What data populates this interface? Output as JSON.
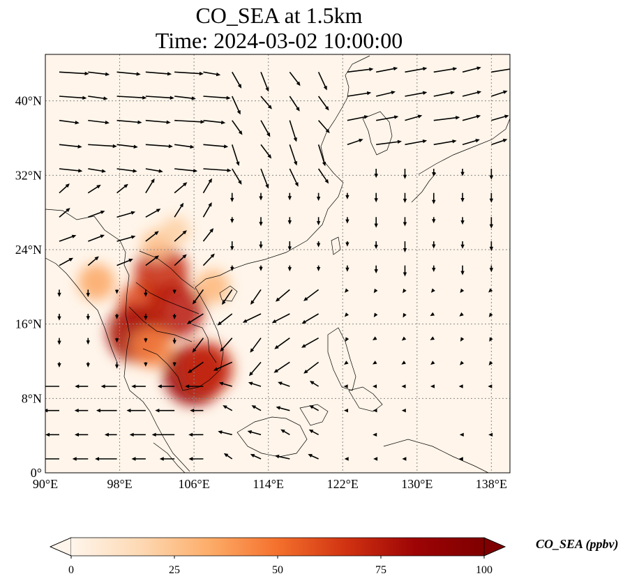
{
  "title": {
    "line1": "CO_SEA at 1.5km",
    "line2": "Time: 2024-03-02 10:00:00"
  },
  "map": {
    "lon_range": [
      90,
      140
    ],
    "lat_range": [
      0,
      45
    ],
    "lon_ticks": [
      {
        "value": 90,
        "label": "90°E"
      },
      {
        "value": 98,
        "label": "98°E"
      },
      {
        "value": 106,
        "label": "106°E"
      },
      {
        "value": 114,
        "label": "114°E"
      },
      {
        "value": 122,
        "label": "122°E"
      },
      {
        "value": 130,
        "label": "130°E"
      },
      {
        "value": 138,
        "label": "138°E"
      }
    ],
    "lat_ticks": [
      {
        "value": 0,
        "label": "0°"
      },
      {
        "value": 8,
        "label": "8°N"
      },
      {
        "value": 16,
        "label": "16°N"
      },
      {
        "value": 24,
        "label": "24°N"
      },
      {
        "value": 32,
        "label": "32°N"
      },
      {
        "value": 40,
        "label": "40°N"
      }
    ],
    "gridlines": true,
    "background_color": "#fff5ea",
    "hotspots": [
      {
        "lon": 100.5,
        "lat": 18.0,
        "value": 60
      },
      {
        "lon": 99.8,
        "lat": 15.0,
        "value": 80
      },
      {
        "lon": 102.5,
        "lat": 21.5,
        "value": 70
      },
      {
        "lon": 104.0,
        "lat": 17.5,
        "value": 75
      },
      {
        "lon": 106.0,
        "lat": 10.5,
        "value": 85
      },
      {
        "lon": 107.3,
        "lat": 11.2,
        "value": 70
      },
      {
        "lon": 101.5,
        "lat": 13.5,
        "value": 45
      },
      {
        "lon": 95.5,
        "lat": 20.5,
        "value": 35
      },
      {
        "lon": 102.0,
        "lat": 24.5,
        "value": 25
      },
      {
        "lon": 104.0,
        "lat": 26.0,
        "value": 20
      },
      {
        "lon": 108.0,
        "lat": 20.0,
        "value": 30
      }
    ],
    "wind_regions": [
      {
        "lon": [
          90,
          110
        ],
        "lat": [
          32,
          45
        ],
        "u": 8,
        "v": -0.8
      },
      {
        "lon": [
          110,
          122
        ],
        "lat": [
          32,
          45
        ],
        "u": 3,
        "v": -6
      },
      {
        "lon": [
          122,
          140
        ],
        "lat": [
          34,
          45
        ],
        "u": 7,
        "v": 1.5
      },
      {
        "lon": [
          90,
          100
        ],
        "lat": [
          22,
          32
        ],
        "u": 5,
        "v": 2.5
      },
      {
        "lon": [
          100,
          110
        ],
        "lat": [
          22,
          32
        ],
        "u": 4,
        "v": 4
      },
      {
        "lon": [
          110,
          124
        ],
        "lat": [
          22,
          32
        ],
        "u": 0,
        "v": -2.5
      },
      {
        "lon": [
          124,
          140
        ],
        "lat": [
          22,
          34
        ],
        "u": 0,
        "v": -3
      },
      {
        "lon": [
          90,
          106
        ],
        "lat": [
          10,
          22
        ],
        "u": 0,
        "v": -2
      },
      {
        "lon": [
          106,
          120
        ],
        "lat": [
          10,
          22
        ],
        "u": -5,
        "v": -4
      },
      {
        "lon": [
          120,
          140
        ],
        "lat": [
          10,
          22
        ],
        "u": -1,
        "v": -1
      },
      {
        "lon": [
          90,
          108
        ],
        "lat": [
          0,
          10
        ],
        "u": -6,
        "v": 0
      },
      {
        "lon": [
          108,
          122
        ],
        "lat": [
          0,
          10
        ],
        "u": -4,
        "v": 1.5
      },
      {
        "lon": [
          122,
          140
        ],
        "lat": [
          0,
          10
        ],
        "u": -1,
        "v": 0
      }
    ]
  },
  "colorbar": {
    "label": "CO_SEA (ppbv)",
    "min": 0,
    "max": 100,
    "ticks": [
      "0",
      "25",
      "50",
      "75",
      "100"
    ],
    "extend": "both",
    "colors": [
      "#fff5eb",
      "#fdd9b4",
      "#fdad6a",
      "#f4702c",
      "#d03211",
      "#9d0405",
      "#7f0000"
    ]
  }
}
